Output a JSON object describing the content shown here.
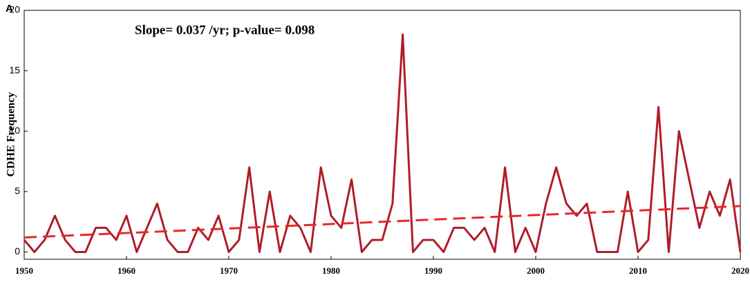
{
  "panel_label": "A",
  "chart_data": {
    "type": "line",
    "annotation": "Slope= 0.037 /yr; p-value= 0.098",
    "y_label": "CDHE Frequency",
    "x": [
      1950,
      1951,
      1952,
      1953,
      1954,
      1955,
      1956,
      1957,
      1958,
      1959,
      1960,
      1961,
      1962,
      1963,
      1964,
      1965,
      1966,
      1967,
      1968,
      1969,
      1970,
      1971,
      1972,
      1973,
      1974,
      1975,
      1976,
      1977,
      1978,
      1979,
      1980,
      1981,
      1982,
      1983,
      1984,
      1985,
      1986,
      1987,
      1988,
      1989,
      1990,
      1991,
      1992,
      1993,
      1994,
      1995,
      1996,
      1997,
      1998,
      1999,
      2000,
      2001,
      2002,
      2003,
      2004,
      2005,
      2006,
      2007,
      2008,
      2009,
      2010,
      2011,
      2012,
      2013,
      2014,
      2015,
      2016,
      2017,
      2018,
      2019,
      2020
    ],
    "values": [
      1,
      0,
      1,
      3,
      1,
      0,
      0,
      2,
      2,
      1,
      3,
      0,
      2,
      4,
      1,
      0,
      0,
      2,
      1,
      3,
      0,
      1,
      7,
      0,
      5,
      0,
      3,
      2,
      0,
      7,
      3,
      2,
      6,
      0,
      1,
      1,
      4,
      18,
      0,
      1,
      1,
      0,
      2,
      2,
      1,
      2,
      0,
      7,
      0,
      2,
      0,
      4,
      7,
      4,
      3,
      4,
      0,
      0,
      0,
      5,
      0,
      1,
      12,
      0,
      10,
      6,
      2,
      5,
      3,
      6,
      0
    ],
    "color": "#b01c28",
    "trend": {
      "x": [
        1950,
        2020
      ],
      "values": [
        1.2,
        3.8
      ],
      "color": "#e8262b",
      "dashed": true
    },
    "xlim": [
      1950,
      2020
    ],
    "xticks": [
      1950,
      1960,
      1970,
      1980,
      1990,
      2000,
      2010,
      2020
    ],
    "ylim": [
      -0.6,
      20
    ],
    "yticks": [
      0,
      5,
      10,
      15,
      20
    ]
  }
}
